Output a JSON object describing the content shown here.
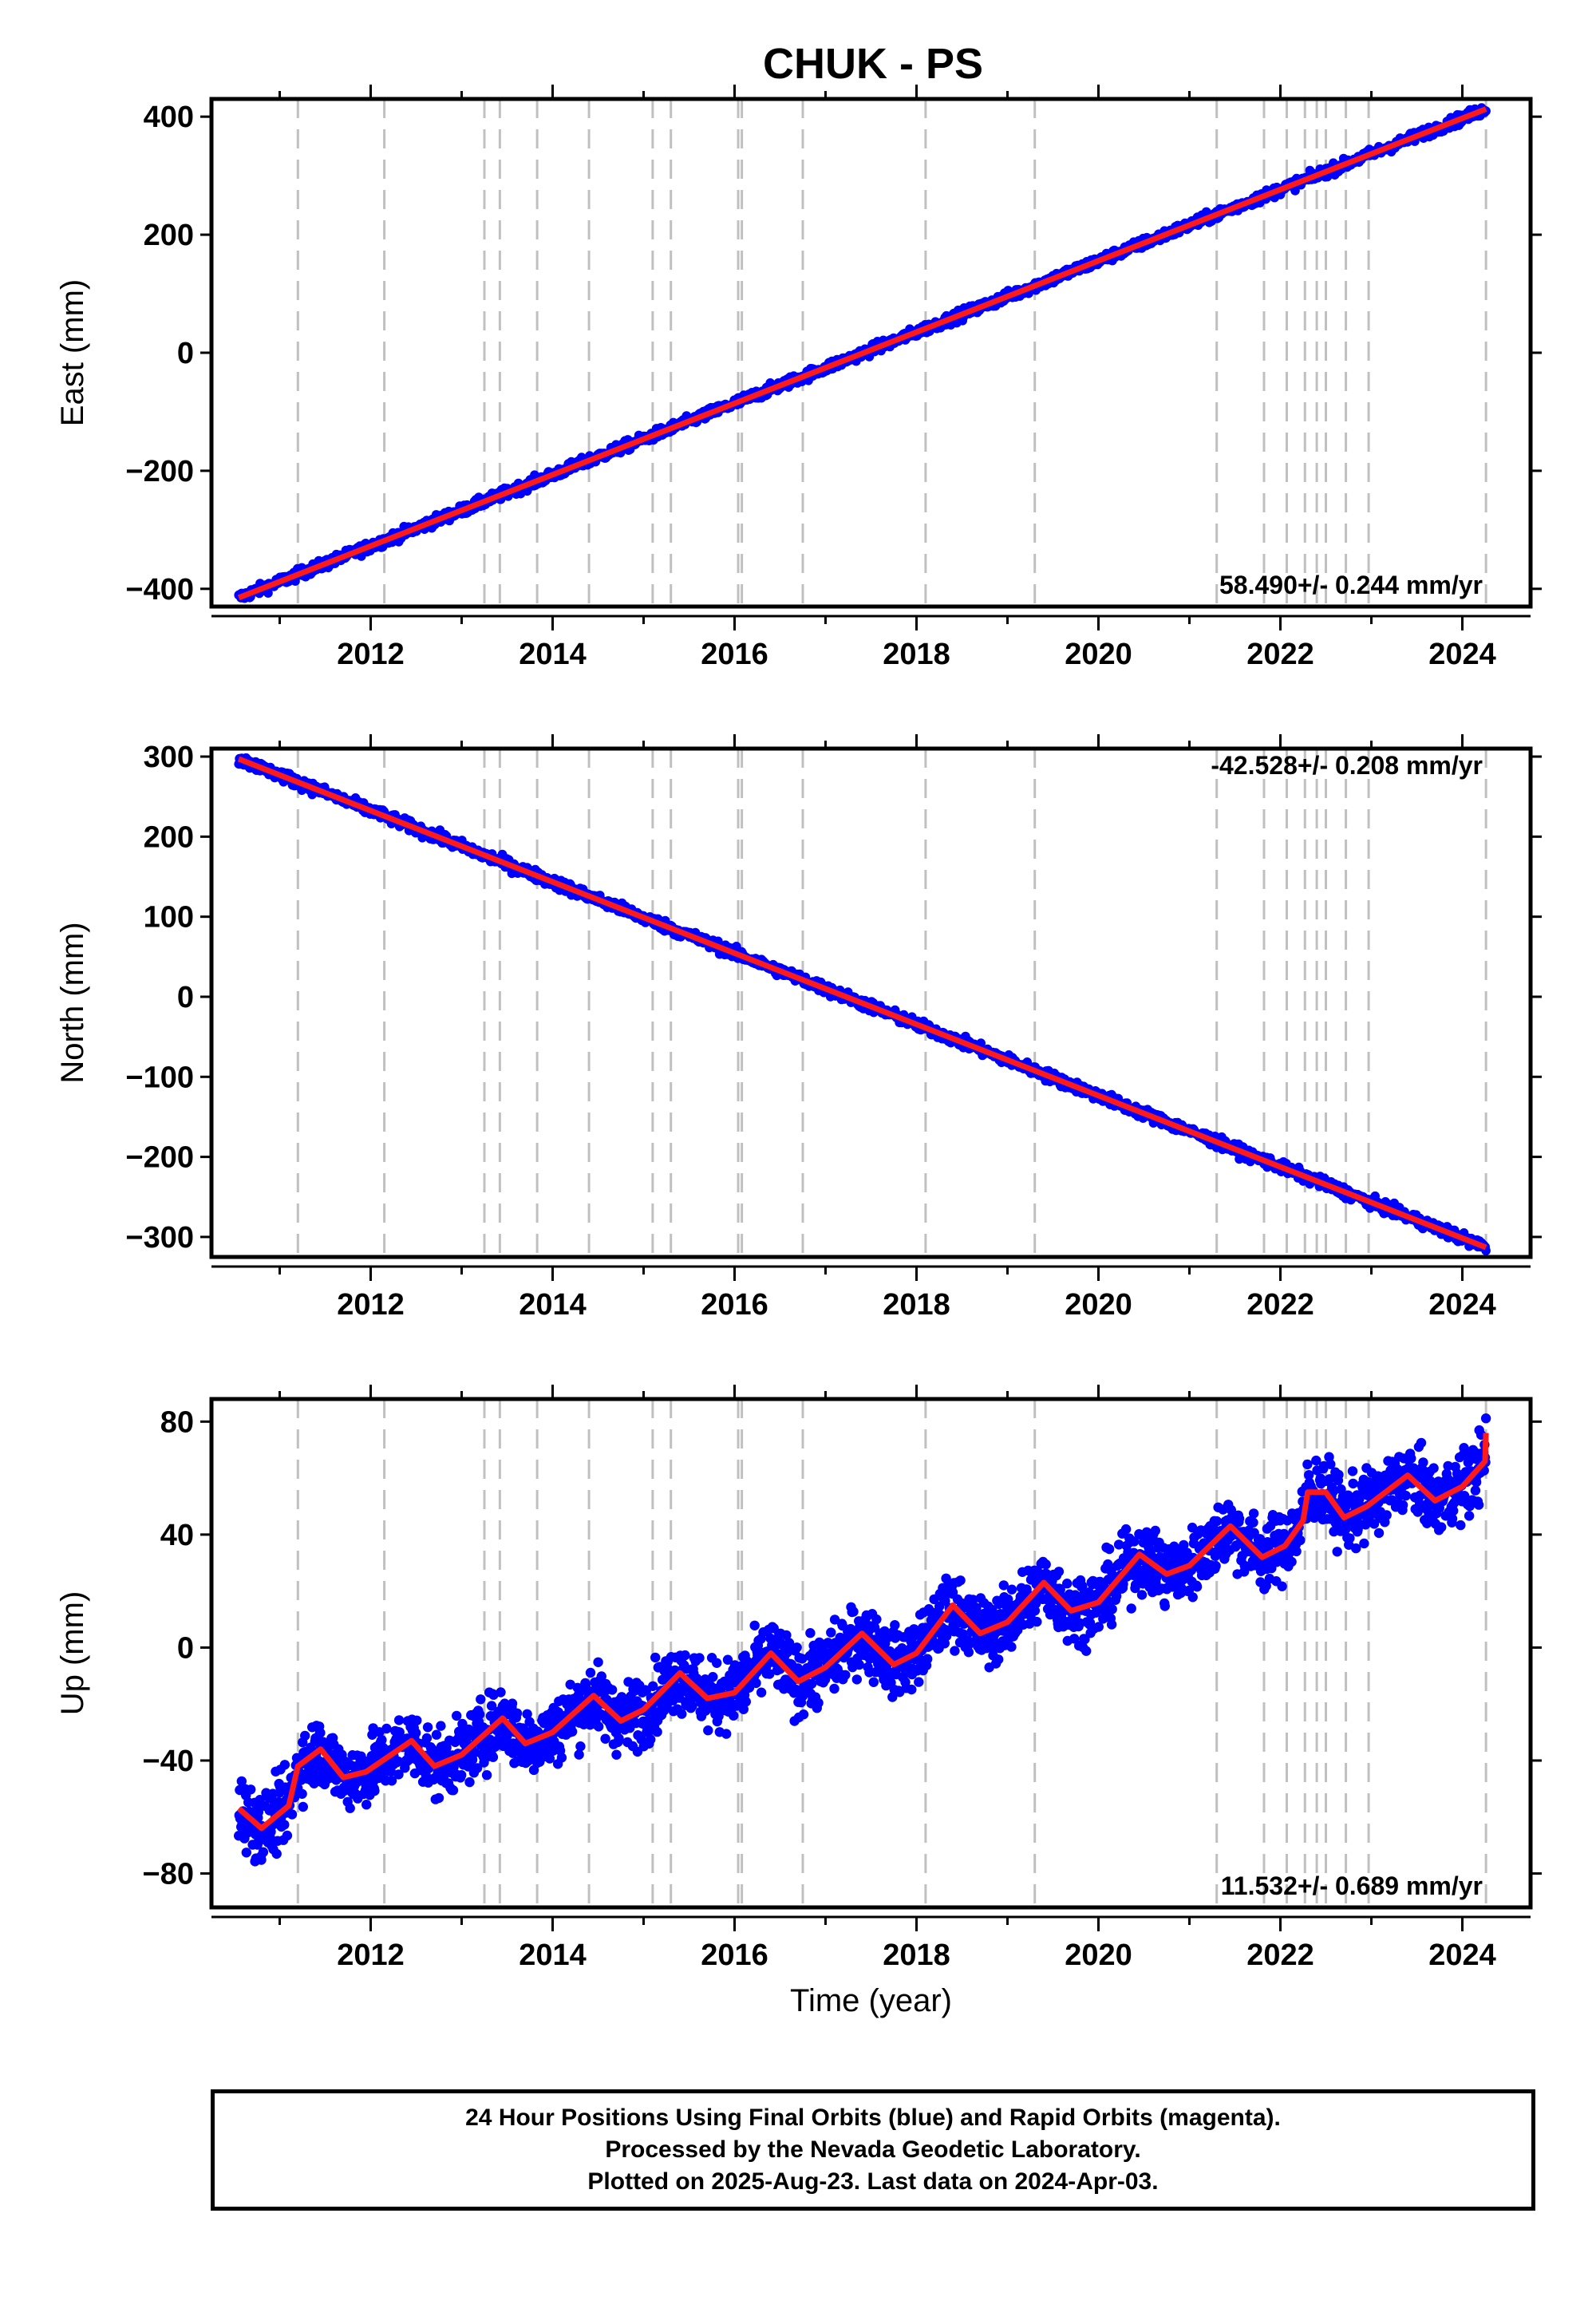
{
  "title": "CHUK - PS",
  "caption": [
    "24 Hour Positions Using Final Orbits (blue) and Rapid Orbits (magenta).",
    "Processed by the Nevada Geodetic Laboratory.",
    "Plotted on 2025-Aug-23. Last data on 2024-Apr-03."
  ],
  "colors": {
    "data": "#0000ff",
    "model": "#ff1a1a",
    "event_lines": "#c0c0c0",
    "frame": "#000000"
  },
  "chart_data": [
    {
      "type": "scatter",
      "panel": "east",
      "ylabel": "East (mm)",
      "xlabel": "",
      "xlim": [
        2010.25,
        2024.75
      ],
      "ylim": [
        -430,
        430
      ],
      "xticks": [
        2012,
        2014,
        2016,
        2018,
        2020,
        2022,
        2024
      ],
      "yticks": [
        -400,
        -200,
        0,
        200,
        400
      ],
      "rate_label": "58.490+/- 0.244 mm/yr",
      "rate_position": "bottom-right",
      "series": [
        {
          "name": "data",
          "start": [
            2010.55,
            -415
          ],
          "end": [
            2024.26,
            413
          ],
          "noise_mm": 4.5,
          "seasonal_mm": 0
        },
        {
          "name": "model",
          "trend_mm_per_yr": 58.49
        }
      ]
    },
    {
      "type": "scatter",
      "panel": "north",
      "ylabel": "North (mm)",
      "xlabel": "",
      "xlim": [
        2010.25,
        2024.75
      ],
      "ylim": [
        -325,
        310
      ],
      "xticks": [
        2012,
        2014,
        2016,
        2018,
        2020,
        2022,
        2024
      ],
      "yticks": [
        -300,
        -200,
        -100,
        0,
        100,
        200,
        300
      ],
      "rate_label": "-42.528+/- 0.208 mm/yr",
      "rate_position": "top-right",
      "series": [
        {
          "name": "data",
          "start": [
            2010.55,
            297
          ],
          "end": [
            2024.26,
            -313
          ],
          "noise_mm": 3.5,
          "seasonal_mm": 0
        },
        {
          "name": "model",
          "trend_mm_per_yr": -42.528
        }
      ]
    },
    {
      "type": "scatter",
      "panel": "up",
      "ylabel": "Up (mm)",
      "xlabel": "Time (year)",
      "xlim": [
        2010.25,
        2024.75
      ],
      "ylim": [
        -92,
        88
      ],
      "xticks": [
        2012,
        2014,
        2016,
        2018,
        2020,
        2022,
        2024
      ],
      "yticks": [
        -80,
        -40,
        0,
        40,
        80
      ],
      "rate_label": "11.532+/- 0.689 mm/yr",
      "rate_position": "bottom-right",
      "series": [
        {
          "name": "data",
          "noise_mm": 6,
          "seasonal_amp_mm": 5
        },
        {
          "name": "model",
          "trend_mm_per_yr": 11.532,
          "model_points": [
            [
              2010.55,
              -57
            ],
            [
              2010.8,
              -64
            ],
            [
              2011.1,
              -56
            ],
            [
              2011.2,
              -42
            ],
            [
              2011.45,
              -36
            ],
            [
              2011.7,
              -46
            ],
            [
              2011.95,
              -44
            ],
            [
              2012.45,
              -33
            ],
            [
              2012.7,
              -42
            ],
            [
              2013.0,
              -38
            ],
            [
              2013.45,
              -25
            ],
            [
              2013.7,
              -34
            ],
            [
              2014.0,
              -30
            ],
            [
              2014.45,
              -17
            ],
            [
              2014.75,
              -26
            ],
            [
              2015.0,
              -22
            ],
            [
              2015.4,
              -9
            ],
            [
              2015.7,
              -18
            ],
            [
              2016.0,
              -16
            ],
            [
              2016.4,
              -2
            ],
            [
              2016.7,
              -12
            ],
            [
              2017.0,
              -7
            ],
            [
              2017.4,
              5
            ],
            [
              2017.75,
              -6
            ],
            [
              2018.0,
              -2
            ],
            [
              2018.4,
              15
            ],
            [
              2018.7,
              5
            ],
            [
              2019.0,
              9
            ],
            [
              2019.4,
              23
            ],
            [
              2019.7,
              13
            ],
            [
              2020.0,
              16
            ],
            [
              2020.45,
              33
            ],
            [
              2020.75,
              26
            ],
            [
              2021.0,
              29
            ],
            [
              2021.45,
              43
            ],
            [
              2021.8,
              32
            ],
            [
              2022.05,
              36
            ],
            [
              2022.25,
              45
            ],
            [
              2022.3,
              55
            ],
            [
              2022.5,
              55
            ],
            [
              2022.7,
              46
            ],
            [
              2022.95,
              50
            ],
            [
              2023.4,
              61
            ],
            [
              2023.7,
              52
            ],
            [
              2024.0,
              57
            ],
            [
              2024.25,
              66
            ],
            [
              2024.26,
              76
            ]
          ]
        }
      ]
    }
  ],
  "event_lines_x": [
    2011.2,
    2012.15,
    2013.25,
    2013.42,
    2013.83,
    2014.4,
    2015.1,
    2015.3,
    2016.04,
    2016.08,
    2016.75,
    2018.1,
    2019.3,
    2021.3,
    2021.82,
    2022.07,
    2022.27,
    2022.4,
    2022.5,
    2022.72,
    2022.97,
    2024.26
  ]
}
